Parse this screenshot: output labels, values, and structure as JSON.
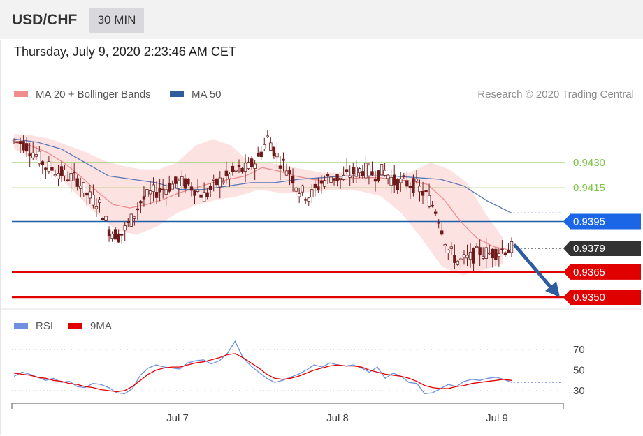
{
  "header": {
    "symbol": "USD/CHF",
    "timeframe": "30 MIN"
  },
  "timestamp": "Thursday, July 9, 2020 2:23:46 AM CET",
  "legend": {
    "ma20": {
      "label": "MA 20 + Bollinger Bands",
      "color": "#f08c8c"
    },
    "ma50": {
      "label": "MA 50",
      "color": "#2e5c9e"
    },
    "credit": "Research © 2020 Trading Central"
  },
  "colors": {
    "candle": "#6e1a1a",
    "band_fill": "#fddddd",
    "ma20_line": "#f08c8c",
    "ma50_line": "#5b78b5",
    "green_level": "#7cc443",
    "blue_level": "#1d5fa8",
    "red_level": "#e00000",
    "current_bg": "#333333",
    "target_arrow": "#2e5c9e",
    "rsi_line": "#6f8fe0",
    "rsi_ma": "#e00000"
  },
  "chart_data": [
    {
      "type": "candlestick",
      "title": "USD/CHF",
      "timeframe": "30 MIN",
      "x_ticks": [
        "Jul 7",
        "Jul 8",
        "Jul 9"
      ],
      "ylim": [
        0.9345,
        0.9452
      ],
      "levels": [
        {
          "value": 0.943,
          "label": "0.9430",
          "kind": "resistance"
        },
        {
          "value": 0.9415,
          "label": "0.9415",
          "kind": "resistance"
        },
        {
          "value": 0.9395,
          "label": "0.9395",
          "kind": "pivot"
        },
        {
          "value": 0.9379,
          "label": "0.9379",
          "kind": "current"
        },
        {
          "value": 0.9365,
          "label": "0.9365",
          "kind": "support"
        },
        {
          "value": 0.935,
          "label": "0.9350",
          "kind": "support"
        }
      ],
      "close_path": [
        0.9443,
        0.9441,
        0.9435,
        0.9428,
        0.9425,
        0.9422,
        0.942,
        0.941,
        0.9406,
        0.939,
        0.9386,
        0.9395,
        0.9407,
        0.9412,
        0.9414,
        0.9417,
        0.9418,
        0.9415,
        0.941,
        0.9417,
        0.9421,
        0.9425,
        0.9426,
        0.9432,
        0.9445,
        0.9432,
        0.9425,
        0.9413,
        0.941,
        0.9418,
        0.9422,
        0.942,
        0.9424,
        0.9426,
        0.9423,
        0.9425,
        0.9418,
        0.9418,
        0.9416,
        0.941,
        0.94,
        0.9378,
        0.9371,
        0.9373,
        0.9377,
        0.9376,
        0.9378,
        0.9379
      ],
      "ma20": [
        0.9442,
        0.944,
        0.9436,
        0.943,
        0.9422,
        0.9413,
        0.9405,
        0.9403,
        0.9405,
        0.9408,
        0.9412,
        0.9415,
        0.9418,
        0.942,
        0.9422,
        0.9427,
        0.9425,
        0.9422,
        0.942,
        0.9419,
        0.942,
        0.9421,
        0.9421,
        0.942,
        0.9419,
        0.9417,
        0.9408,
        0.9395,
        0.9385,
        0.938,
        0.9378
      ],
      "ma50": [
        0.9444,
        0.9442,
        0.9438,
        0.943,
        0.9422,
        0.942,
        0.9418,
        0.9414,
        0.9414,
        0.9416,
        0.9418,
        0.9418,
        0.942,
        0.9421,
        0.9422,
        0.9422,
        0.9422,
        0.9421,
        0.942,
        0.9416,
        0.9407,
        0.94
      ],
      "bollinger_upper": [
        0.9447,
        0.9446,
        0.9444,
        0.944,
        0.9436,
        0.9431,
        0.9428,
        0.9426,
        0.9426,
        0.943,
        0.944,
        0.9444,
        0.944,
        0.943,
        0.943,
        0.9428,
        0.9426,
        0.9424,
        0.9424,
        0.9423,
        0.9424,
        0.942,
        0.9425,
        0.943,
        0.9426,
        0.9418,
        0.94,
        0.9385
      ],
      "bollinger_lower": [
        0.9438,
        0.9432,
        0.9424,
        0.9412,
        0.94,
        0.939,
        0.9387,
        0.9392,
        0.94,
        0.9405,
        0.9408,
        0.941,
        0.9414,
        0.9412,
        0.9412,
        0.9413,
        0.9414,
        0.9413,
        0.941,
        0.94,
        0.9385,
        0.9368,
        0.9363,
        0.9366,
        0.937
      ]
    },
    {
      "type": "line",
      "title": "RSI",
      "series": [
        {
          "name": "RSI",
          "values": [
            44,
            48,
            46,
            43,
            40,
            42,
            38,
            39,
            34,
            33,
            37,
            36,
            33,
            28,
            27,
            32,
            45,
            52,
            55,
            53,
            52,
            51,
            57,
            59,
            60,
            56,
            59,
            66,
            78,
            62,
            54,
            48,
            42,
            38,
            40,
            43,
            46,
            50,
            55,
            53,
            57,
            55,
            54,
            55,
            52,
            48,
            53,
            42,
            47,
            44,
            38,
            37,
            27,
            28,
            32,
            36,
            34,
            39,
            41,
            40,
            42,
            43,
            41,
            38
          ]
        },
        {
          "name": "9MA",
          "values": [
            47,
            46,
            45,
            43,
            42,
            40,
            39,
            37,
            36,
            34,
            33,
            31,
            30,
            29,
            30,
            34,
            40,
            46,
            50,
            52,
            53,
            53,
            55,
            57,
            58,
            60,
            62,
            65,
            66,
            62,
            57,
            52,
            46,
            42,
            41,
            42,
            44,
            47,
            50,
            52,
            54,
            55,
            54,
            54,
            53,
            50,
            48,
            46,
            45,
            44,
            42,
            39,
            35,
            33,
            32,
            32,
            34,
            35,
            37,
            38,
            39,
            40,
            41,
            40
          ]
        }
      ],
      "ylim": [
        20,
        80
      ],
      "y_ticks": [
        70,
        50,
        30
      ],
      "x_ticks": [
        "Jul 7",
        "Jul 8",
        "Jul 9"
      ]
    }
  ]
}
